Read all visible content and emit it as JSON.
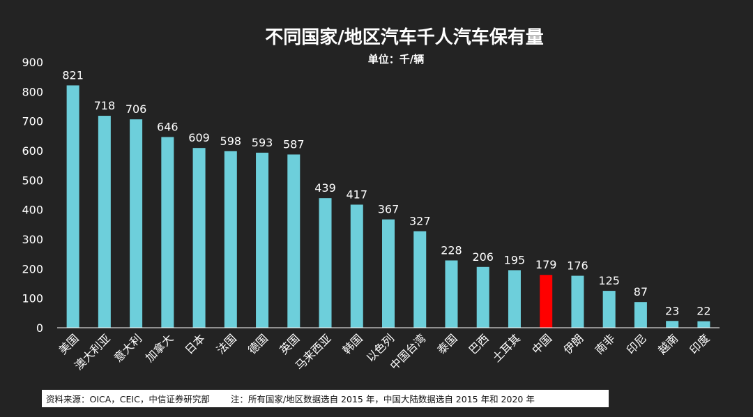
{
  "chart_data": {
    "type": "bar",
    "title": "不同国家/地区汽车千人汽车保有量",
    "subtitle": "单位：千/辆",
    "categories": [
      "美国",
      "澳大利亚",
      "意大利",
      "加拿大",
      "日本",
      "法国",
      "德国",
      "英国",
      "马来西亚",
      "韩国",
      "以色列",
      "中国台湾",
      "泰国",
      "巴西",
      "土耳其",
      "中国",
      "伊朗",
      "南非",
      "印尼",
      "越南",
      "印度"
    ],
    "values": [
      821,
      718,
      706,
      646,
      609,
      598,
      593,
      587,
      439,
      417,
      367,
      327,
      228,
      206,
      195,
      179,
      176,
      125,
      87,
      23,
      22
    ],
    "ylim": [
      0,
      900
    ],
    "yticks": [
      0,
      100,
      200,
      300,
      400,
      500,
      600,
      700,
      800,
      900
    ],
    "grid": false,
    "bar_color": "#6dcfdb",
    "highlight_color": "#ff0000",
    "highlight_category": "中国"
  },
  "footer": {
    "source": "资料来源：OICA，CEIC，中信证券研究部",
    "note": "注：所有国家/地区数据选自 2015 年，中国大陆数据选自 2015 年和 2020 年"
  }
}
